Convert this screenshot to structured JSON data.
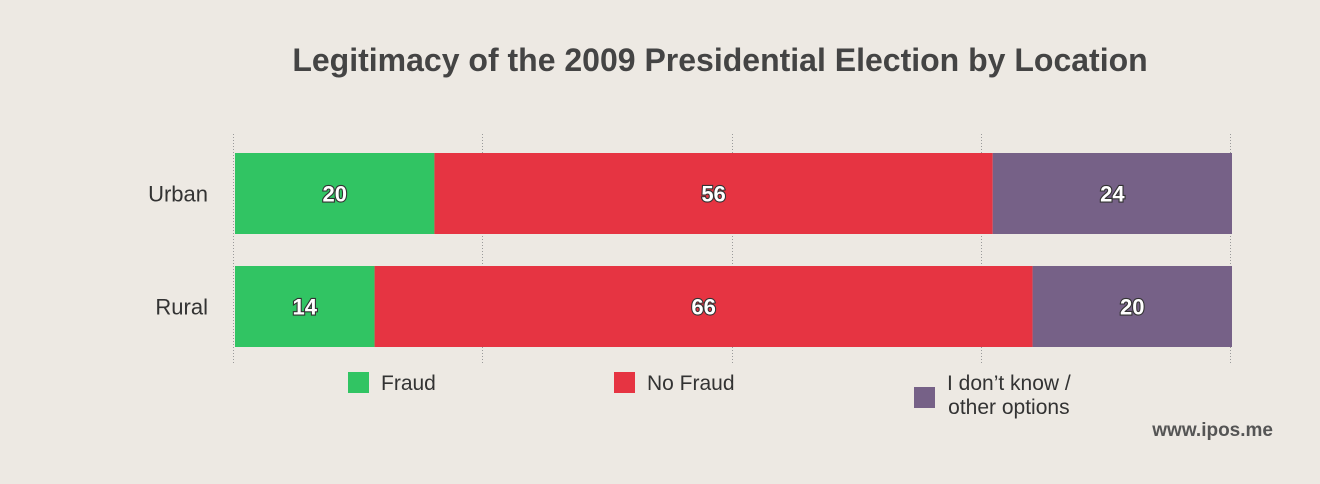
{
  "chart_data": {
    "type": "bar",
    "orientation": "horizontal",
    "stacked": true,
    "title": "Legitimacy of the 2009 Presidential Election by Location",
    "categories": [
      "Urban",
      "Rural"
    ],
    "series": [
      {
        "name": "Fraud",
        "values": [
          20,
          14
        ],
        "color": "#31c463"
      },
      {
        "name": "No Fraud",
        "values": [
          56,
          66
        ],
        "color": "#e63442"
      },
      {
        "name": "I don’t know / other options",
        "name_lines": [
          "I don’t know /",
          "other options"
        ],
        "values": [
          24,
          20
        ],
        "color": "#766187"
      }
    ],
    "xlim": [
      0,
      100
    ],
    "grid": true,
    "legend_position": "bottom"
  },
  "watermark": "www.ipos.me"
}
